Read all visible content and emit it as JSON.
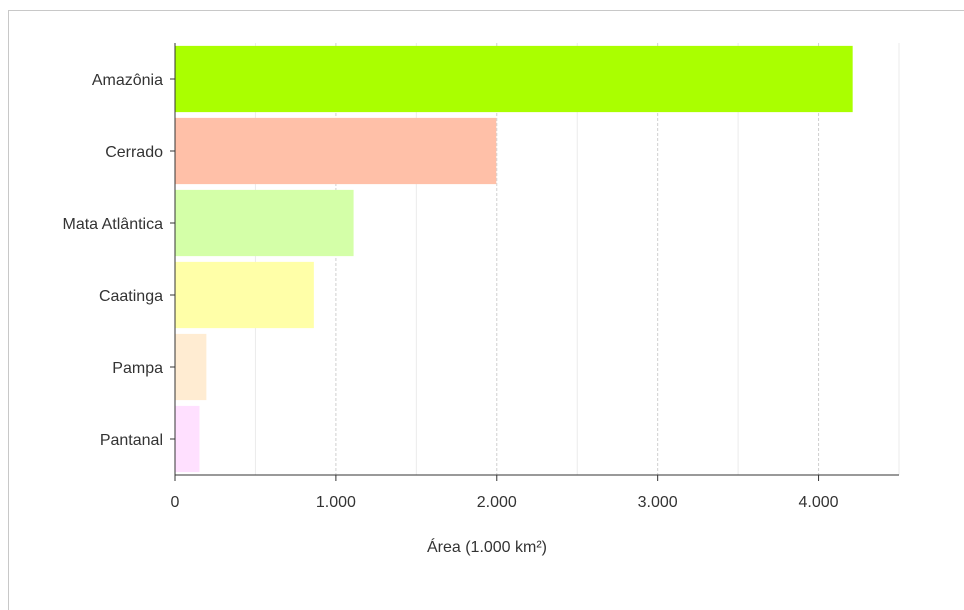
{
  "chart_data": {
    "type": "bar",
    "orientation": "horizontal",
    "categories": [
      "Amazônia",
      "Cerrado",
      "Mata Atlântica",
      "Caatinga",
      "Pampa",
      "Pantanal"
    ],
    "values": [
      4212,
      1997,
      1110,
      863,
      195,
      152
    ],
    "colors": [
      "#aaff00",
      "#ffc0a8",
      "#d4ffa8",
      "#ffffa8",
      "#ffecd2",
      "#ffe0ff"
    ],
    "xlabel": "Área (1.000 km²)",
    "ylabel": "",
    "xlim": [
      0,
      4500
    ],
    "xticks": [
      0,
      1000,
      2000,
      3000,
      4000
    ],
    "xtick_labels": [
      "0",
      "1.000",
      "2.000",
      "3.000",
      "4.000"
    ],
    "minor_gridlines": [
      500,
      1500,
      2500,
      3500,
      4500
    ],
    "grid": true
  }
}
